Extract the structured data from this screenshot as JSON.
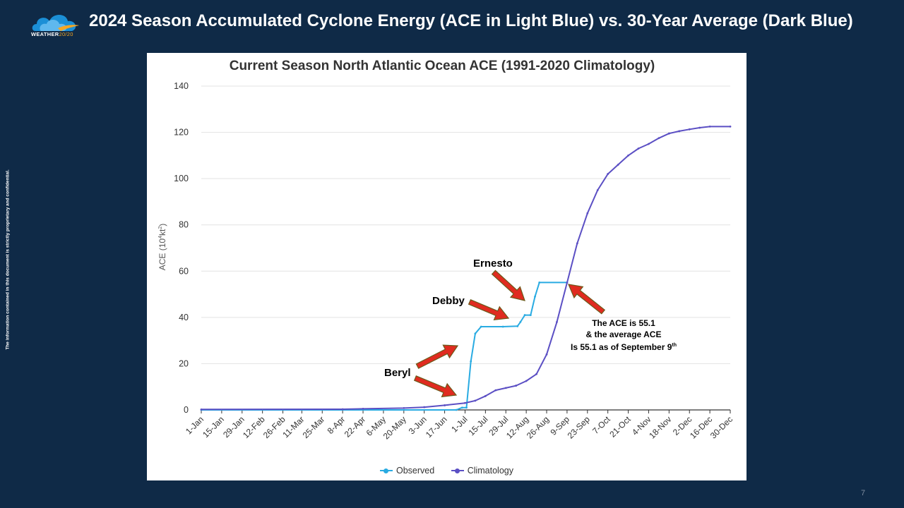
{
  "slide": {
    "title": "2024 Season Accumulated Cyclone Energy (ACE in Light Blue) vs. 30-Year Average (Dark Blue)",
    "logo_text_main": "WEATHER",
    "logo_text_accent": "20/20",
    "side_note": "The information contained in this document is strictly proprietary and confidential.",
    "page_number": "7"
  },
  "colors": {
    "background": "#0f2a47",
    "observed": "#29abe2",
    "climatology": "#5b4fc4",
    "arrow_fill": "#e02b20",
    "arrow_stroke": "#6b5a1a"
  },
  "annotations": {
    "beryl": "Beryl",
    "debby": "Debby",
    "ernesto": "Ernesto",
    "box_line1": "The ACE is 55.1",
    "box_line2": "& the average ACE",
    "box_line3_main": "Is 55.1 as of September 9",
    "box_line3_sup": "th"
  },
  "chart_data": {
    "type": "line",
    "title": "Current Season North Atlantic Ocean ACE (1991-2020 Climatology)",
    "ylabel_main": "ACE (10",
    "ylabel_sup1": "4",
    "ylabel_mid": "kt",
    "ylabel_sup2": "2",
    "ylabel_end": ")",
    "xlabel": "",
    "ylim": [
      0,
      140
    ],
    "yticks": [
      0,
      20,
      40,
      60,
      80,
      100,
      120,
      140
    ],
    "xlim_day": [
      1,
      364
    ],
    "categories": [
      "1-Jan",
      "15-Jan",
      "29-Jan",
      "12-Feb",
      "26-Feb",
      "11-Mar",
      "25-Mar",
      "8-Apr",
      "22-Apr",
      "6-May",
      "20-May",
      "3-Jun",
      "17-Jun",
      "1-Jul",
      "15-Jul",
      "29-Jul",
      "12-Aug",
      "26-Aug",
      "9-Sep",
      "23-Sep",
      "7-Oct",
      "21-Oct",
      "4-Nov",
      "18-Nov",
      "2-Dec",
      "16-Dec",
      "30-Dec"
    ],
    "grid": true,
    "legend_position": "bottom",
    "series": [
      {
        "name": "Observed",
        "color": "#29abe2",
        "points": [
          [
            "1-Jan",
            0
          ],
          [
            "25-Jun",
            0
          ],
          [
            "29-Jun",
            1
          ],
          [
            "2-Jul",
            1
          ],
          [
            "5-Jul",
            21
          ],
          [
            "8-Jul",
            33
          ],
          [
            "12-Jul",
            36
          ],
          [
            "27-Jul",
            36
          ],
          [
            "6-Aug",
            36.2
          ],
          [
            "8-Aug",
            38
          ],
          [
            "11-Aug",
            41
          ],
          [
            "15-Aug",
            41
          ],
          [
            "18-Aug",
            49
          ],
          [
            "21-Aug",
            55.1
          ],
          [
            "9-Sep",
            55.1
          ]
        ]
      },
      {
        "name": "Climatology",
        "color": "#5b4fc4",
        "points": [
          [
            "1-Jan",
            0.2
          ],
          [
            "8-Apr",
            0.3
          ],
          [
            "22-Apr",
            0.5
          ],
          [
            "20-May",
            0.8
          ],
          [
            "3-Jun",
            1.2
          ],
          [
            "17-Jun",
            2
          ],
          [
            "1-Jul",
            3
          ],
          [
            "8-Jul",
            4
          ],
          [
            "15-Jul",
            6
          ],
          [
            "22-Jul",
            8.5
          ],
          [
            "29-Jul",
            9.5
          ],
          [
            "5-Aug",
            10.5
          ],
          [
            "12-Aug",
            12.5
          ],
          [
            "19-Aug",
            15.5
          ],
          [
            "26-Aug",
            24
          ],
          [
            "2-Sep",
            38
          ],
          [
            "9-Sep",
            55
          ],
          [
            "16-Sep",
            72
          ],
          [
            "23-Sep",
            85
          ],
          [
            "30-Sep",
            95
          ],
          [
            "7-Oct",
            102
          ],
          [
            "14-Oct",
            106
          ],
          [
            "21-Oct",
            110
          ],
          [
            "28-Oct",
            113
          ],
          [
            "4-Nov",
            115
          ],
          [
            "11-Nov",
            117.5
          ],
          [
            "18-Nov",
            119.5
          ],
          [
            "25-Nov",
            120.5
          ],
          [
            "2-Dec",
            121.3
          ],
          [
            "9-Dec",
            122
          ],
          [
            "16-Dec",
            122.5
          ],
          [
            "30-Dec",
            122.5
          ]
        ]
      }
    ]
  }
}
